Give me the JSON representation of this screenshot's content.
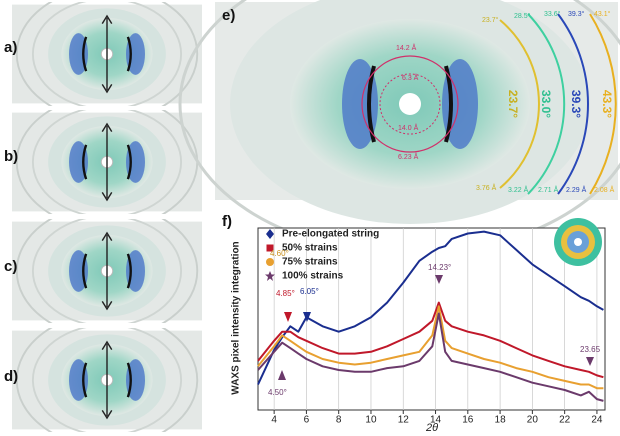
{
  "chart_data": {
    "type": "line",
    "panels": {
      "a": "a)",
      "b": "b)",
      "c": "c)",
      "d": "d)",
      "e": "e)",
      "f": "f)"
    },
    "panel_e_annotations": {
      "inner": [
        "14.2 Å",
        "6.3 Å",
        "14.0 Å",
        "6.23 Å"
      ],
      "rings": [
        "23.7°",
        "33.0°",
        "39.3°",
        "43.3°"
      ],
      "ring_top": [
        "23.7°",
        "28.5°",
        "33.6°",
        "39.3°",
        "43.1°"
      ],
      "ring_bottom": [
        "3.76 Å",
        "3.22 Å",
        "2.71 Å",
        "2.29 Å",
        "2.08 Å"
      ]
    },
    "x_label": "2θ",
    "y_label": "WAXS  pixel intensity integration",
    "x": [
      3,
      4,
      4.5,
      5,
      5.5,
      6,
      7,
      8,
      9,
      10,
      11,
      12,
      13,
      13.8,
      14.2,
      14.6,
      15,
      16,
      17,
      18,
      19,
      20,
      21,
      22,
      23,
      23.5,
      24,
      24.4
    ],
    "series": [
      {
        "name": "Pre-elongated string",
        "color": "#1a2e8f",
        "marker": "diamond",
        "values": [
          14,
          33,
          40,
          46,
          43,
          51,
          46,
          43,
          46,
          51,
          59,
          70,
          82,
          87,
          89,
          90,
          94,
          97,
          98,
          96,
          88,
          80,
          74,
          68,
          62,
          60,
          57,
          55
        ]
      },
      {
        "name": "50%  strains",
        "color": "#c0182a",
        "marker": "square",
        "values": [
          27,
          38,
          43,
          43,
          40,
          38,
          34,
          31,
          31,
          32,
          35,
          39,
          43,
          49,
          59,
          49,
          46,
          43,
          41,
          38,
          34,
          30,
          27,
          24,
          22,
          21,
          19,
          18
        ]
      },
      {
        "name": "75%  strains",
        "color": "#e8a030",
        "marker": "circle",
        "values": [
          24,
          35,
          41,
          38,
          35,
          32,
          28,
          26,
          25,
          26,
          28,
          30,
          32,
          41,
          57,
          38,
          34,
          31,
          28,
          26,
          23,
          21,
          18,
          16,
          14,
          14,
          12,
          12
        ]
      },
      {
        "name": "100% strains",
        "color": "#6b3a6b",
        "marker": "star",
        "values": [
          22,
          32,
          37,
          34,
          31,
          28,
          24,
          22,
          21,
          21,
          23,
          24,
          27,
          35,
          53,
          32,
          27,
          25,
          23,
          21,
          18,
          15,
          13,
          11,
          8,
          10,
          6,
          5
        ]
      }
    ],
    "annotations": [
      "4.60°",
      "4.85°",
      "6.05°",
      "14.23°",
      "4.50°",
      "23.65"
    ],
    "xlim": [
      3,
      24.5
    ],
    "xticks": [
      4,
      6,
      8,
      10,
      12,
      14,
      16,
      18,
      20,
      22,
      24
    ],
    "ylim": [
      0,
      100
    ],
    "grid": true
  }
}
